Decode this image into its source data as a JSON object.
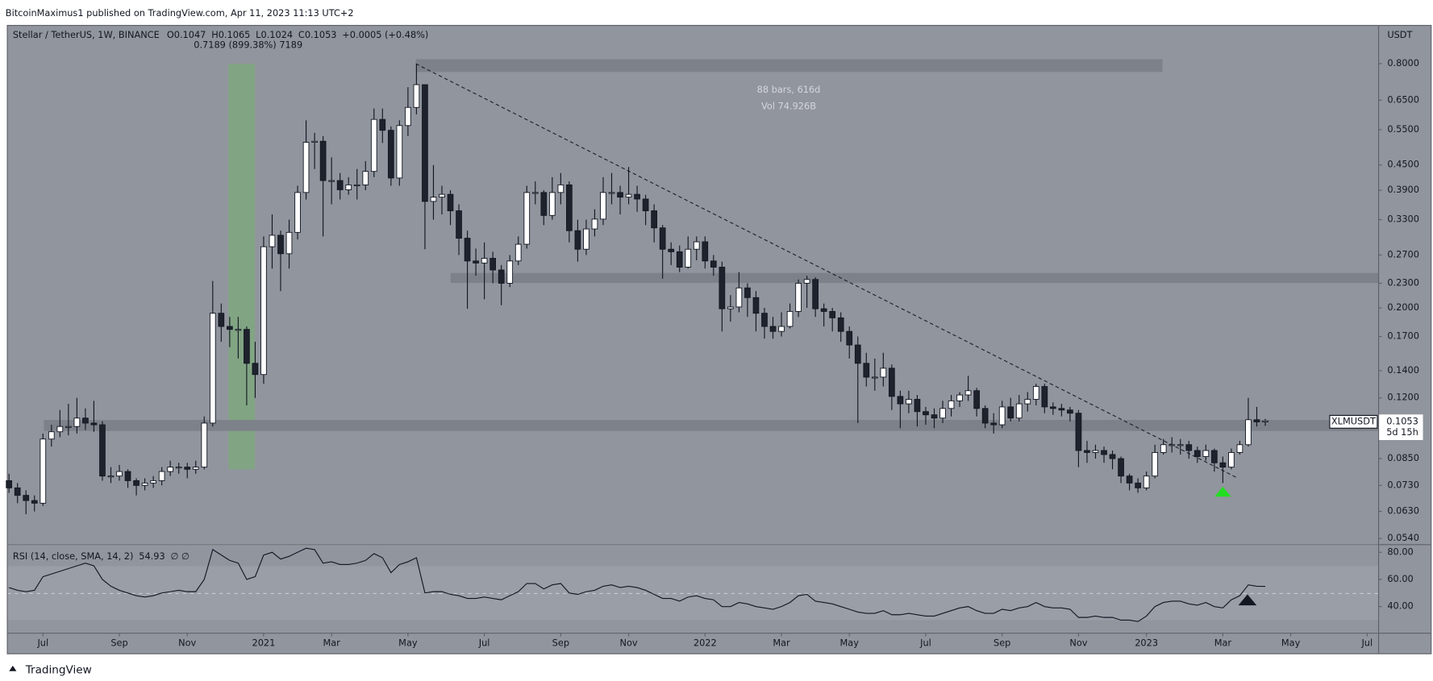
{
  "header": {
    "published": "BitcoinMaximus1 published on TradingView.com, Apr 11, 2023 11:13 UTC+2"
  },
  "footer": {
    "brand": "TradingView"
  },
  "chart_data": [
    {
      "type": "candlestick",
      "legend": {
        "symbol": "Stellar / TetherUS, 1W, BINANCE",
        "labels": [
          "O",
          "H",
          "L",
          "C"
        ],
        "change": "+0.0005 (+0.48%)"
      },
      "annotations": [
        "0.7189 (899.38%) 7189",
        "88 bars, 616d",
        "Vol 74.926B"
      ],
      "axis_unit": "USDT",
      "price_tag": {
        "symbol": "XLMUSDT",
        "countdown": "5d 15h"
      },
      "colors": {
        "up": "#ffffff",
        "down": "#1e222d",
        "wick": "#131722"
      },
      "log_scale": true,
      "open": [
        0.075,
        0.072,
        0.069,
        0.067,
        0.066,
        0.095,
        0.099,
        0.102,
        0.102,
        0.107,
        0.104,
        0.103,
        0.077,
        0.077,
        0.079,
        0.075,
        0.073,
        0.074,
        0.075,
        0.079,
        0.081,
        0.081,
        0.08,
        0.081,
        0.104,
        0.194,
        0.18,
        0.177,
        0.177,
        0.146,
        0.137,
        0.283,
        0.302,
        0.272,
        0.307,
        0.385,
        0.512,
        0.515,
        0.412,
        0.412,
        0.391,
        0.402,
        0.402,
        0.434,
        0.583,
        0.548,
        0.418,
        0.563,
        0.624,
        0.71,
        0.366,
        0.375,
        0.381,
        0.347,
        0.297,
        0.261,
        0.258,
        0.265,
        0.248,
        0.23,
        0.261,
        0.287,
        0.385,
        0.385,
        0.338,
        0.385,
        0.402,
        0.31,
        0.279,
        0.313,
        0.331,
        0.385,
        0.385,
        0.375,
        0.381,
        0.371,
        0.347,
        0.315,
        0.279,
        0.275,
        0.252,
        0.279,
        0.291,
        0.261,
        0.252,
        0.199,
        0.201,
        0.224,
        0.212,
        0.194,
        0.18,
        0.175,
        0.18,
        0.196,
        0.23,
        0.235,
        0.199,
        0.196,
        0.189,
        0.175,
        0.162,
        0.146,
        0.135,
        0.135,
        0.142,
        0.121,
        0.116,
        0.119,
        0.111,
        0.109,
        0.107,
        0.113,
        0.118,
        0.122,
        0.125,
        0.113,
        0.104,
        0.103,
        0.114,
        0.107,
        0.116,
        0.119,
        0.128,
        0.114,
        0.113,
        0.112,
        0.11,
        0.089,
        0.088,
        0.089,
        0.087,
        0.085,
        0.077,
        0.074,
        0.072,
        0.077,
        0.088,
        0.092,
        0.092,
        0.092,
        0.089,
        0.086,
        0.089,
        0.083,
        0.081,
        0.088,
        0.092,
        0.106,
        0.1047
      ],
      "high": [
        0.078,
        0.074,
        0.071,
        0.069,
        0.098,
        0.103,
        0.112,
        0.116,
        0.12,
        0.113,
        0.118,
        0.105,
        0.081,
        0.082,
        0.08,
        0.076,
        0.076,
        0.077,
        0.081,
        0.084,
        0.083,
        0.083,
        0.084,
        0.108,
        0.233,
        0.205,
        0.19,
        0.19,
        0.18,
        0.165,
        0.3,
        0.34,
        0.31,
        0.33,
        0.4,
        0.58,
        0.54,
        0.53,
        0.47,
        0.43,
        0.42,
        0.44,
        0.46,
        0.62,
        0.62,
        0.56,
        0.58,
        0.7,
        0.8,
        0.71,
        0.45,
        0.4,
        0.39,
        0.36,
        0.31,
        0.28,
        0.29,
        0.275,
        0.255,
        0.27,
        0.3,
        0.4,
        0.41,
        0.39,
        0.42,
        0.43,
        0.41,
        0.33,
        0.33,
        0.35,
        0.42,
        0.43,
        0.4,
        0.445,
        0.4,
        0.38,
        0.36,
        0.32,
        0.29,
        0.285,
        0.3,
        0.3,
        0.3,
        0.27,
        0.26,
        0.215,
        0.245,
        0.23,
        0.22,
        0.2,
        0.19,
        0.195,
        0.205,
        0.235,
        0.24,
        0.238,
        0.205,
        0.2,
        0.195,
        0.18,
        0.17,
        0.155,
        0.15,
        0.155,
        0.145,
        0.125,
        0.125,
        0.122,
        0.114,
        0.113,
        0.118,
        0.122,
        0.124,
        0.136,
        0.127,
        0.115,
        0.11,
        0.118,
        0.12,
        0.122,
        0.124,
        0.13,
        0.13,
        0.117,
        0.116,
        0.114,
        0.112,
        0.094,
        0.092,
        0.091,
        0.089,
        0.086,
        0.078,
        0.076,
        0.079,
        0.092,
        0.095,
        0.096,
        0.095,
        0.094,
        0.091,
        0.092,
        0.09,
        0.086,
        0.09,
        0.094,
        0.12,
        0.114,
        0.1065
      ],
      "low": [
        0.07,
        0.066,
        0.062,
        0.063,
        0.065,
        0.091,
        0.096,
        0.097,
        0.098,
        0.1,
        0.099,
        0.075,
        0.074,
        0.075,
        0.072,
        0.069,
        0.071,
        0.072,
        0.073,
        0.077,
        0.078,
        0.076,
        0.078,
        0.08,
        0.102,
        0.165,
        0.16,
        0.15,
        0.115,
        0.12,
        0.13,
        0.25,
        0.22,
        0.25,
        0.295,
        0.37,
        0.44,
        0.3,
        0.36,
        0.37,
        0.38,
        0.37,
        0.39,
        0.42,
        0.51,
        0.4,
        0.4,
        0.53,
        0.6,
        0.279,
        0.33,
        0.34,
        0.32,
        0.27,
        0.199,
        0.24,
        0.21,
        0.23,
        0.203,
        0.225,
        0.255,
        0.28,
        0.36,
        0.32,
        0.33,
        0.36,
        0.29,
        0.26,
        0.27,
        0.3,
        0.32,
        0.36,
        0.34,
        0.36,
        0.345,
        0.32,
        0.29,
        0.236,
        0.255,
        0.245,
        0.25,
        0.262,
        0.25,
        0.24,
        0.175,
        0.185,
        0.195,
        0.19,
        0.175,
        0.168,
        0.168,
        0.17,
        0.178,
        0.19,
        0.2,
        0.19,
        0.18,
        0.175,
        0.165,
        0.15,
        0.104,
        0.128,
        0.125,
        0.128,
        0.112,
        0.101,
        0.11,
        0.102,
        0.103,
        0.101,
        0.104,
        0.108,
        0.114,
        0.118,
        0.108,
        0.101,
        0.098,
        0.101,
        0.105,
        0.105,
        0.111,
        0.115,
        0.11,
        0.109,
        0.108,
        0.105,
        0.081,
        0.083,
        0.085,
        0.083,
        0.08,
        0.074,
        0.071,
        0.07,
        0.071,
        0.076,
        0.087,
        0.088,
        0.087,
        0.085,
        0.083,
        0.084,
        0.079,
        0.074,
        0.08,
        0.087,
        0.091,
        0.102,
        0.1024
      ],
      "close": [
        0.072,
        0.069,
        0.067,
        0.066,
        0.095,
        0.099,
        0.102,
        0.102,
        0.107,
        0.104,
        0.103,
        0.077,
        0.077,
        0.079,
        0.075,
        0.073,
        0.074,
        0.075,
        0.079,
        0.081,
        0.081,
        0.08,
        0.081,
        0.104,
        0.194,
        0.18,
        0.177,
        0.177,
        0.146,
        0.137,
        0.283,
        0.302,
        0.272,
        0.307,
        0.385,
        0.512,
        0.515,
        0.412,
        0.412,
        0.391,
        0.402,
        0.402,
        0.434,
        0.583,
        0.548,
        0.418,
        0.563,
        0.624,
        0.71,
        0.366,
        0.375,
        0.381,
        0.347,
        0.297,
        0.261,
        0.258,
        0.265,
        0.248,
        0.23,
        0.261,
        0.287,
        0.385,
        0.385,
        0.338,
        0.385,
        0.402,
        0.31,
        0.279,
        0.313,
        0.331,
        0.385,
        0.385,
        0.375,
        0.381,
        0.371,
        0.347,
        0.315,
        0.279,
        0.275,
        0.252,
        0.279,
        0.291,
        0.261,
        0.252,
        0.199,
        0.201,
        0.224,
        0.212,
        0.194,
        0.18,
        0.175,
        0.18,
        0.196,
        0.23,
        0.235,
        0.199,
        0.196,
        0.189,
        0.175,
        0.162,
        0.146,
        0.135,
        0.135,
        0.142,
        0.121,
        0.116,
        0.119,
        0.111,
        0.109,
        0.107,
        0.113,
        0.118,
        0.122,
        0.125,
        0.113,
        0.104,
        0.103,
        0.114,
        0.107,
        0.116,
        0.119,
        0.128,
        0.114,
        0.113,
        0.112,
        0.11,
        0.089,
        0.088,
        0.089,
        0.087,
        0.085,
        0.077,
        0.074,
        0.072,
        0.077,
        0.088,
        0.092,
        0.092,
        0.092,
        0.089,
        0.086,
        0.089,
        0.083,
        0.081,
        0.088,
        0.092,
        0.106,
        0.1047,
        0.1053
      ],
      "xlim": [
        -0.2,
        161.3
      ],
      "xticks": [
        {
          "value": 4,
          "label": "Jul"
        },
        {
          "value": 13,
          "label": "Sep"
        },
        {
          "value": 21,
          "label": "Nov"
        },
        {
          "value": 30,
          "label": "2021"
        },
        {
          "value": 38,
          "label": "Mar"
        },
        {
          "value": 47,
          "label": "May"
        },
        {
          "value": 56,
          "label": "Jul"
        },
        {
          "value": 65,
          "label": "Sep"
        },
        {
          "value": 73,
          "label": "Nov"
        },
        {
          "value": 82,
          "label": "2022"
        },
        {
          "value": 91,
          "label": "Mar"
        },
        {
          "value": 99,
          "label": "May"
        },
        {
          "value": 108,
          "label": "Jul"
        },
        {
          "value": 117,
          "label": "Sep"
        },
        {
          "value": 126,
          "label": "Nov"
        },
        {
          "value": 134,
          "label": "2023"
        },
        {
          "value": 143,
          "label": "Mar"
        },
        {
          "value": 151,
          "label": "May"
        },
        {
          "value": 160,
          "label": "Jul"
        }
      ],
      "ylim": [
        0.0523,
        0.994
      ],
      "yticks": [
        {
          "value": 0.8,
          "label": "0.8000"
        },
        {
          "value": 0.65,
          "label": "0.6500"
        },
        {
          "value": 0.55,
          "label": "0.5500"
        },
        {
          "value": 0.45,
          "label": "0.4500"
        },
        {
          "value": 0.39,
          "label": "0.3900"
        },
        {
          "value": 0.33,
          "label": "0.3300"
        },
        {
          "value": 0.27,
          "label": "0.2700"
        },
        {
          "value": 0.23,
          "label": "0.2300"
        },
        {
          "value": 0.2,
          "label": "0.2000"
        },
        {
          "value": 0.17,
          "label": "0.1700"
        },
        {
          "value": 0.14,
          "label": "0.1400"
        },
        {
          "value": 0.12,
          "label": "0.1200"
        },
        {
          "value": 0.085,
          "label": "0.0850"
        },
        {
          "value": 0.073,
          "label": "0.0730"
        },
        {
          "value": 0.063,
          "label": "0.0630"
        },
        {
          "value": 0.054,
          "label": "0.0540"
        }
      ]
    },
    {
      "type": "line",
      "title": "RSI (14, close, SMA, 14, 2)",
      "sma_label": "∅ ∅",
      "color": "#131722",
      "values": [
        54,
        52,
        51,
        52,
        62,
        64,
        66,
        68,
        70,
        72,
        70,
        60,
        55,
        52,
        50,
        48,
        47,
        48,
        50,
        51,
        52,
        51,
        51,
        60,
        82,
        78,
        74,
        72,
        60,
        62,
        78,
        80,
        75,
        77,
        80,
        83,
        82,
        72,
        73,
        71,
        71,
        72,
        74,
        79,
        76,
        65,
        71,
        73,
        76,
        50,
        51,
        51,
        49,
        48,
        46,
        46,
        47,
        46,
        45,
        48,
        51,
        57,
        57,
        53,
        56,
        57,
        50,
        49,
        51,
        52,
        55,
        56,
        54,
        55,
        54,
        52,
        49,
        46,
        46,
        44,
        47,
        48,
        46,
        45,
        40,
        40,
        43,
        42,
        40,
        39,
        38,
        40,
        43,
        48,
        49,
        44,
        43,
        42,
        40,
        38,
        36,
        35,
        35,
        37,
        34,
        34,
        35,
        34,
        33,
        33,
        35,
        37,
        39,
        40,
        37,
        35,
        35,
        38,
        37,
        39,
        40,
        43,
        40,
        39,
        39,
        38,
        32,
        32,
        33,
        32,
        32,
        30,
        30,
        29,
        33,
        40,
        43,
        44,
        44,
        42,
        41,
        43,
        40,
        39,
        45,
        48,
        56,
        55,
        54.93
      ],
      "ylim": [
        20.7,
        85.3
      ],
      "yticks": [
        {
          "value": 80,
          "label": "80.00"
        },
        {
          "value": 60,
          "label": "60.00"
        },
        {
          "value": 40,
          "label": "40.00"
        }
      ]
    }
  ]
}
